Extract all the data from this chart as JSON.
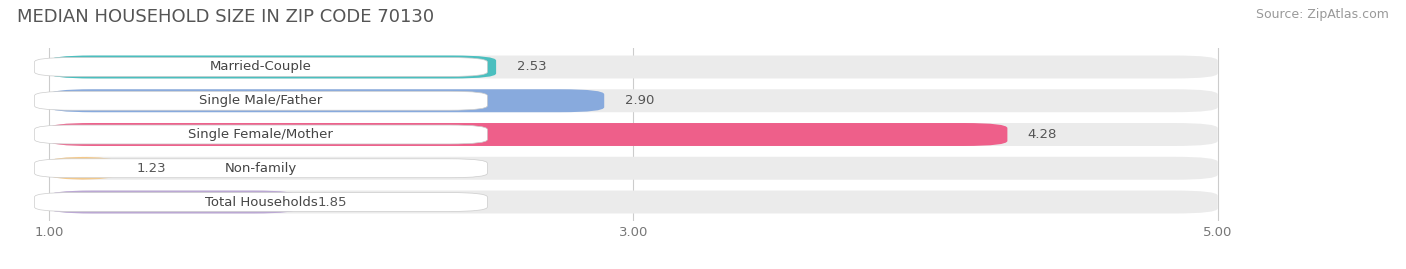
{
  "title": "MEDIAN HOUSEHOLD SIZE IN ZIP CODE 70130",
  "source": "Source: ZipAtlas.com",
  "categories": [
    "Married-Couple",
    "Single Male/Father",
    "Single Female/Mother",
    "Non-family",
    "Total Households"
  ],
  "values": [
    2.53,
    2.9,
    4.28,
    1.23,
    1.85
  ],
  "bar_colors": [
    "#4BBFBF",
    "#88AADD",
    "#EE5F8A",
    "#F5C98A",
    "#BBA8D4"
  ],
  "bg_row_color": "#EBEBEB",
  "xticks": [
    1.0,
    3.0,
    5.0
  ],
  "xmin": 1.0,
  "xmax": 5.0,
  "title_fontsize": 13,
  "source_fontsize": 9,
  "label_fontsize": 9.5,
  "value_fontsize": 9.5
}
